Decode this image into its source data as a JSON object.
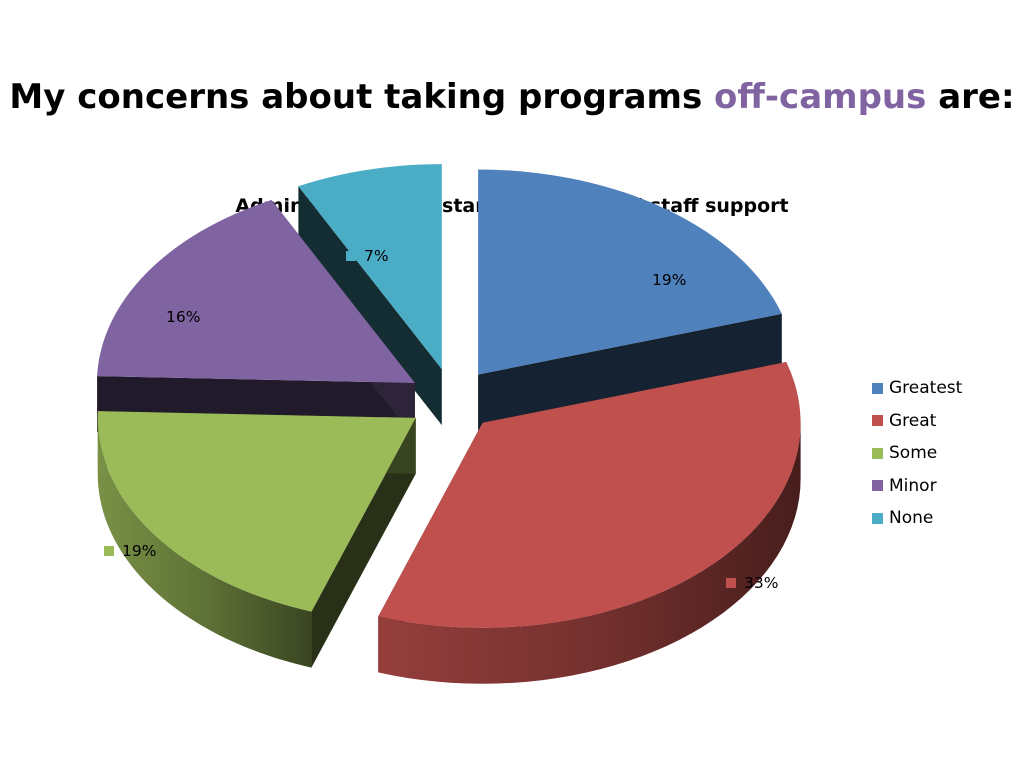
{
  "slide": {
    "title_part1": "My concerns about taking programs ",
    "title_accent": "off-campus",
    "title_part2": " are:",
    "accent_color": "#8064a2"
  },
  "chart_data": {
    "type": "pie",
    "title": "Administrative assistance and clerical staff support",
    "style": "3d-exploded",
    "legend_position": "right",
    "slices": [
      {
        "name": "Greatest",
        "value": 19,
        "label": "19%",
        "color": "#4f81bd"
      },
      {
        "name": "Great",
        "value": 33,
        "label": "33%",
        "color": "#c0504d"
      },
      {
        "name": "Some",
        "value": 19,
        "label": "19%",
        "color": "#9bbb59"
      },
      {
        "name": "Minor",
        "value": 16,
        "label": "16%",
        "color": "#8064a2"
      },
      {
        "name": "None",
        "value": 7,
        "label": "7%",
        "color": "#4bacc6"
      }
    ]
  }
}
